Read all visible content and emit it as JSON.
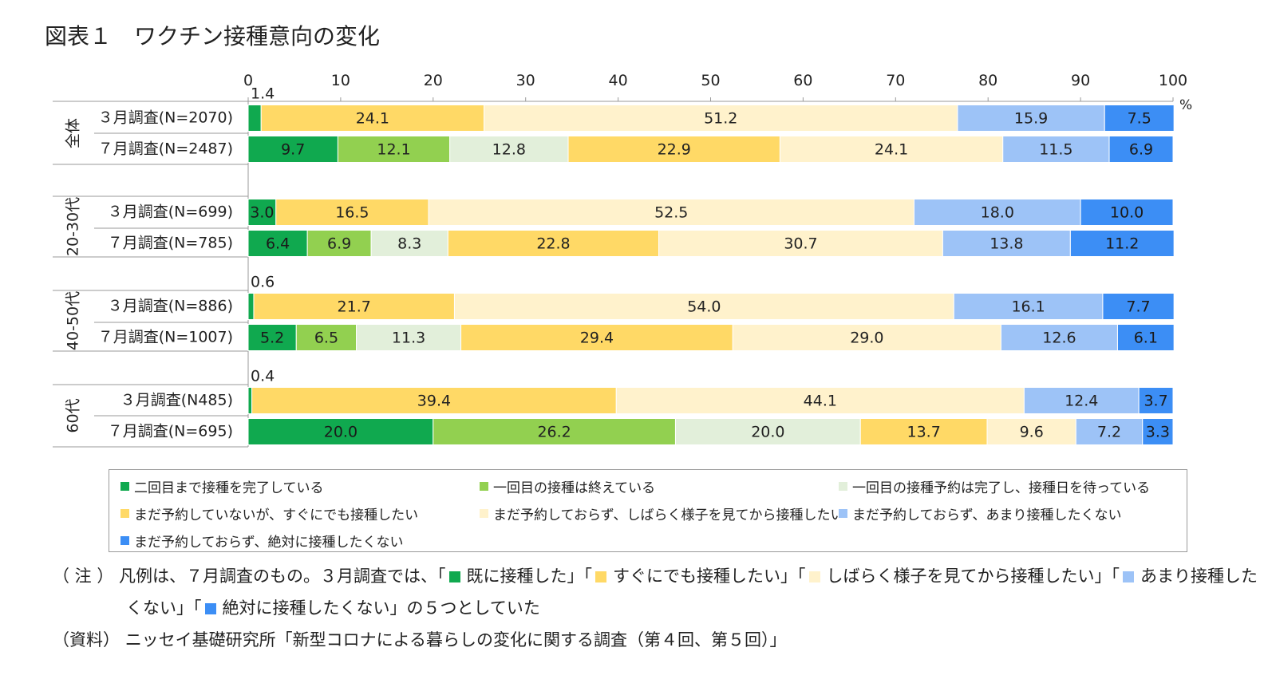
{
  "figure": {
    "title": "図表１　ワクチン接種意向の変化"
  },
  "chart_data": {
    "type": "bar",
    "orientation": "horizontal-stacked-100",
    "xlim": [
      0,
      100
    ],
    "x_ticks": [
      0,
      10,
      20,
      30,
      40,
      50,
      60,
      70,
      80,
      90,
      100
    ],
    "x_unit": "%",
    "grid": false,
    "legend_position": "bottom",
    "colors": {
      "二回目まで接種を完了している": "#10a94f",
      "一回目の接種は終えている": "#92d050",
      "一回目の接種予約は完了し、接種日を待っている": "#e2efda",
      "まだ予約していないが、すぐにでも接種したい": "#ffd966",
      "まだ予約しておらず、しばらく様子を見てから接種したい": "#fff2cc",
      "まだ予約しておらず、あまり接種したくない": "#9dc3f7",
      "まだ予約しておらず、絶対に接種したくない": "#3c8ef5"
    },
    "legend": [
      "二回目まで接種を完了している",
      "一回目の接種は終えている",
      "一回目の接種予約は完了し、接種日を待っている",
      "まだ予約していないが、すぐにでも接種したい",
      "まだ予約しておらず、しばらく様子を見てから接種したい",
      "まだ予約しておらず、あまり接種したくない",
      "まだ予約しておらず、絶対に接種したくない"
    ],
    "groups": [
      {
        "label": "全体",
        "rows": [
          {
            "label": "３月調査(N=2070)",
            "segments": [
              {
                "cat": "二回目まで接種を完了している",
                "value": 1.4
              },
              {
                "cat": "まだ予約していないが、すぐにでも接種したい",
                "value": 24.1
              },
              {
                "cat": "まだ予約しておらず、しばらく様子を見てから接種したい",
                "value": 51.2
              },
              {
                "cat": "まだ予約しておらず、あまり接種したくない",
                "value": 15.9
              },
              {
                "cat": "まだ予約しておらず、絶対に接種したくない",
                "value": 7.5
              }
            ],
            "outside_label": "1.4"
          },
          {
            "label": "７月調査(N=2487)",
            "segments": [
              {
                "cat": "二回目まで接種を完了している",
                "value": 9.7
              },
              {
                "cat": "一回目の接種は終えている",
                "value": 12.1
              },
              {
                "cat": "一回目の接種予約は完了し、接種日を待っている",
                "value": 12.8
              },
              {
                "cat": "まだ予約していないが、すぐにでも接種したい",
                "value": 22.9
              },
              {
                "cat": "まだ予約しておらず、しばらく様子を見てから接種したい",
                "value": 24.1
              },
              {
                "cat": "まだ予約しておらず、あまり接種したくない",
                "value": 11.5
              },
              {
                "cat": "まだ予約しておらず、絶対に接種したくない",
                "value": 6.9
              }
            ]
          }
        ]
      },
      {
        "label": "20-30代",
        "rows": [
          {
            "label": "３月調査(N=699)",
            "segments": [
              {
                "cat": "二回目まで接種を完了している",
                "value": 3.0
              },
              {
                "cat": "まだ予約していないが、すぐにでも接種したい",
                "value": 16.5
              },
              {
                "cat": "まだ予約しておらず、しばらく様子を見てから接種したい",
                "value": 52.5
              },
              {
                "cat": "まだ予約しておらず、あまり接種したくない",
                "value": 18.0
              },
              {
                "cat": "まだ予約しておらず、絶対に接種したくない",
                "value": 10.0
              }
            ]
          },
          {
            "label": "７月調査(N=785)",
            "segments": [
              {
                "cat": "二回目まで接種を完了している",
                "value": 6.4
              },
              {
                "cat": "一回目の接種は終えている",
                "value": 6.9
              },
              {
                "cat": "一回目の接種予約は完了し、接種日を待っている",
                "value": 8.3
              },
              {
                "cat": "まだ予約していないが、すぐにでも接種したい",
                "value": 22.8
              },
              {
                "cat": "まだ予約しておらず、しばらく様子を見てから接種したい",
                "value": 30.7
              },
              {
                "cat": "まだ予約しておらず、あまり接種したくない",
                "value": 13.8
              },
              {
                "cat": "まだ予約しておらず、絶対に接種したくない",
                "value": 11.2
              }
            ]
          }
        ]
      },
      {
        "label": "40-50代",
        "rows": [
          {
            "label": "３月調査(N=886)",
            "segments": [
              {
                "cat": "二回目まで接種を完了している",
                "value": 0.6
              },
              {
                "cat": "まだ予約していないが、すぐにでも接種したい",
                "value": 21.7
              },
              {
                "cat": "まだ予約しておらず、しばらく様子を見てから接種したい",
                "value": 54.0
              },
              {
                "cat": "まだ予約しておらず、あまり接種したくない",
                "value": 16.1
              },
              {
                "cat": "まだ予約しておらず、絶対に接種したくない",
                "value": 7.7
              }
            ],
            "outside_label": "0.6"
          },
          {
            "label": "７月調査(N=1007)",
            "segments": [
              {
                "cat": "二回目まで接種を完了している",
                "value": 5.2
              },
              {
                "cat": "一回目の接種は終えている",
                "value": 6.5
              },
              {
                "cat": "一回目の接種予約は完了し、接種日を待っている",
                "value": 11.3
              },
              {
                "cat": "まだ予約していないが、すぐにでも接種したい",
                "value": 29.4
              },
              {
                "cat": "まだ予約しておらず、しばらく様子を見てから接種したい",
                "value": 29.0
              },
              {
                "cat": "まだ予約しておらず、あまり接種したくない",
                "value": 12.6
              },
              {
                "cat": "まだ予約しておらず、絶対に接種したくない",
                "value": 6.1
              }
            ]
          }
        ]
      },
      {
        "label": "60代",
        "rows": [
          {
            "label": "３月調査(N485)",
            "segments": [
              {
                "cat": "二回目まで接種を完了している",
                "value": 0.4
              },
              {
                "cat": "まだ予約していないが、すぐにでも接種したい",
                "value": 39.4
              },
              {
                "cat": "まだ予約しておらず、しばらく様子を見てから接種したい",
                "value": 44.1
              },
              {
                "cat": "まだ予約しておらず、あまり接種したくない",
                "value": 12.4
              },
              {
                "cat": "まだ予約しておらず、絶対に接種したくない",
                "value": 3.7
              }
            ],
            "outside_label": "0.4"
          },
          {
            "label": "７月調査(N=695)",
            "segments": [
              {
                "cat": "二回目まで接種を完了している",
                "value": 20.0
              },
              {
                "cat": "一回目の接種は終えている",
                "value": 26.2
              },
              {
                "cat": "一回目の接種予約は完了し、接種日を待っている",
                "value": 20.0
              },
              {
                "cat": "まだ予約していないが、すぐにでも接種したい",
                "value": 13.7
              },
              {
                "cat": "まだ予約しておらず、しばらく様子を見てから接種したい",
                "value": 9.6
              },
              {
                "cat": "まだ予約しておらず、あまり接種したくない",
                "value": 7.2
              },
              {
                "cat": "まだ予約しておらず、絶対に接種したくない",
                "value": 3.3
              }
            ]
          }
        ]
      }
    ]
  },
  "notes": {
    "note_prefix": "（ 注 ）",
    "note_line1_a": "凡例は、７月調査のもの。３月調査では、「",
    "note_item1": "既に接種した」「",
    "note_item2": "すぐにでも接種したい」「",
    "note_item3": "しばらく様子を見てから接種したい」「",
    "note_item4": "あまり接種した",
    "note_line2_a": "くない」「",
    "note_item5": "絶対に接種したくない」の５つとしていた",
    "source_prefix": "（資料）",
    "source_text": "ニッセイ基礎研究所「新型コロナによる暮らしの変化に関する調査（第４回、第５回）」"
  }
}
